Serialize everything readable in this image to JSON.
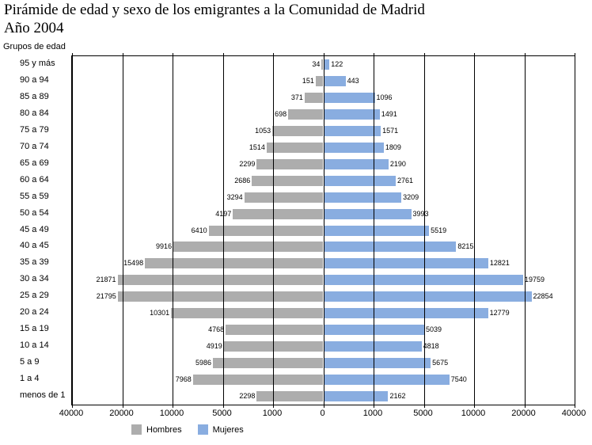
{
  "title": {
    "line1": "Pirámide de edad y sexo de los emigrantes a la Comunidad de Madrid",
    "line2": "Año 2004"
  },
  "legend": {
    "items": [
      {
        "label": "Hombres",
        "color": "#ADADAD"
      },
      {
        "label": "Mujeres",
        "color": "#89ADE0"
      }
    ]
  },
  "chart_data": {
    "type": "bar",
    "variant": "population-pyramid",
    "title": "Pirámide de edad y sexo de los emigrantes a la Comunidad de Madrid",
    "subtitle": "Año 2004",
    "ylabel": "Grupos de edad",
    "xlabel": "",
    "grid": true,
    "legend_position": "bottom",
    "categories": [
      "95 y más",
      "90 a 94",
      "85 a 89",
      "80 a 84",
      "75 a 79",
      "70 a 74",
      "65 a 69",
      "60 a 64",
      "55 a 59",
      "50 a 54",
      "45 a 49",
      "40 a 45",
      "35 a 39",
      "30 a 34",
      "25 a 29",
      "20 a 24",
      "15 a 19",
      "10 a 14",
      "5 a 9",
      "1 a 4",
      "menos de 1"
    ],
    "series": [
      {
        "name": "Hombres",
        "side": "left",
        "color": "#ADADAD",
        "values": [
          34,
          151,
          371,
          698,
          1053,
          1514,
          2299,
          2686,
          3294,
          4197,
          6410,
          9916,
          15498,
          21871,
          21795,
          10301,
          4768,
          4919,
          5986,
          7968,
          2298
        ]
      },
      {
        "name": "Mujeres",
        "side": "right",
        "color": "#89ADE0",
        "values": [
          122,
          443,
          1096,
          1491,
          1571,
          1809,
          2190,
          2761,
          3209,
          3993,
          5519,
          8215,
          12821,
          19759,
          22854,
          12779,
          5039,
          4818,
          5675,
          7540,
          2162
        ]
      }
    ],
    "x_ticks_labels": [
      "40000",
      "20000",
      "10000",
      "5000",
      "1000",
      "0",
      "1000",
      "5000",
      "10000",
      "20000",
      "40000"
    ],
    "x_scale": {
      "type": "piecewise-linear",
      "stops": [
        0,
        1000,
        5000,
        10000,
        20000,
        40000
      ]
    }
  }
}
